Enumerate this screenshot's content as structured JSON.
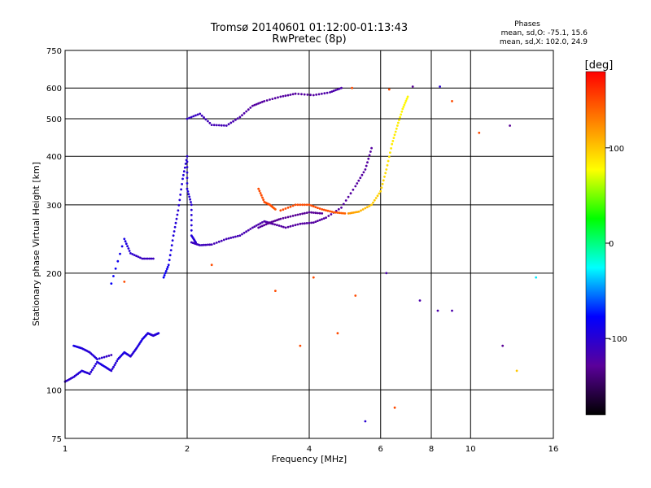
{
  "chart_data": {
    "type": "scatter",
    "title": "Tromsø 20140601 01:12:00-01:13:43",
    "subtitle": "RwPretec (8p)",
    "stats": {
      "heading": "Phases",
      "line1": "mean, sd,O: -75.1, 15.6",
      "line2": "mean, sd,X: 102.0, 24.9"
    },
    "xlabel": "Frequency [MHz]",
    "ylabel": "Stationary phase Virtual Height [km]",
    "xscale": "log",
    "yscale": "log",
    "xlim": [
      1,
      16
    ],
    "ylim": [
      75,
      750
    ],
    "xticks": [
      1,
      2,
      4,
      6,
      8,
      10,
      16
    ],
    "xtick_labels": [
      "1",
      "2",
      "4",
      "6",
      "8",
      "10",
      "16"
    ],
    "yticks": [
      75,
      100,
      200,
      300,
      400,
      500,
      600,
      750
    ],
    "ytick_labels": [
      "75",
      "100",
      "200",
      "300",
      "400",
      "500",
      "600",
      "750"
    ],
    "grid": true,
    "colorbar": {
      "label": "[deg]",
      "range": [
        -180,
        180
      ],
      "ticks": [
        100,
        0,
        -100
      ],
      "tick_labels": [
        "100",
        "0",
        "-100"
      ],
      "colors": [
        "#000000",
        "#5a009a",
        "#0000ff",
        "#00ffff",
        "#00ff00",
        "#ffff00",
        "#ff8000",
        "#ff0000"
      ]
    },
    "series": [
      {
        "values": [
          [
            1.0,
            105,
            -105
          ],
          [
            1.05,
            108,
            -100
          ],
          [
            1.1,
            112,
            -95
          ],
          [
            1.15,
            110,
            -100
          ],
          [
            1.2,
            118,
            -95
          ],
          [
            1.25,
            115,
            -90
          ],
          [
            1.3,
            112,
            -100
          ],
          [
            1.35,
            120,
            -95
          ],
          [
            1.4,
            125,
            -90
          ],
          [
            1.45,
            122,
            -100
          ],
          [
            1.5,
            128,
            -95
          ],
          [
            1.55,
            135,
            -90
          ],
          [
            1.6,
            140,
            -95
          ],
          [
            1.65,
            138,
            -100
          ],
          [
            1.7,
            140,
            -95
          ]
        ]
      },
      {
        "values": [
          [
            1.05,
            130,
            -90
          ],
          [
            1.1,
            128,
            -95
          ],
          [
            1.15,
            125,
            -100
          ],
          [
            1.2,
            120,
            -95
          ],
          [
            1.3,
            123,
            -110
          ]
        ]
      },
      {
        "values": [
          [
            1.3,
            188,
            -80
          ],
          [
            1.4,
            245,
            -90
          ],
          [
            1.45,
            225,
            -100
          ],
          [
            1.55,
            218,
            -110
          ],
          [
            1.65,
            218,
            -110
          ]
        ]
      },
      {
        "values": [
          [
            1.75,
            195,
            -80
          ],
          [
            1.8,
            210,
            -90
          ],
          [
            1.85,
            250,
            -95
          ],
          [
            1.9,
            290,
            -100
          ],
          [
            1.95,
            350,
            -95
          ],
          [
            2.0,
            400,
            -100
          ],
          [
            2.0,
            330,
            -95
          ],
          [
            2.05,
            300,
            -100
          ],
          [
            2.05,
            250,
            -95
          ],
          [
            2.1,
            240,
            -100
          ]
        ]
      },
      {
        "values": [
          [
            2.05,
            240,
            -110
          ],
          [
            2.15,
            236,
            -110
          ],
          [
            2.3,
            237,
            -115
          ],
          [
            2.5,
            245,
            -115
          ],
          [
            2.7,
            250,
            -115
          ],
          [
            2.9,
            262,
            -120
          ],
          [
            3.1,
            272,
            -120
          ],
          [
            3.25,
            268,
            -125
          ],
          [
            3.5,
            262,
            -125
          ],
          [
            3.8,
            268,
            -125
          ],
          [
            4.1,
            270,
            -125
          ],
          [
            4.4,
            278,
            -125
          ],
          [
            4.8,
            295,
            -125
          ],
          [
            5.2,
            335,
            -125
          ],
          [
            5.5,
            370,
            -125
          ],
          [
            5.7,
            420,
            -125
          ]
        ]
      },
      {
        "values": [
          [
            3.0,
            262,
            -125
          ],
          [
            3.2,
            270,
            -130
          ],
          [
            3.4,
            276,
            -130
          ],
          [
            3.7,
            282,
            -130
          ],
          [
            4.0,
            287,
            -130
          ],
          [
            4.3,
            285,
            -130
          ]
        ]
      },
      {
        "values": [
          [
            2.0,
            500,
            -105
          ],
          [
            2.15,
            515,
            -110
          ],
          [
            2.3,
            482,
            -115
          ],
          [
            2.5,
            480,
            -115
          ],
          [
            2.7,
            505,
            -120
          ],
          [
            2.9,
            540,
            -125
          ],
          [
            3.1,
            555,
            -125
          ],
          [
            3.4,
            570,
            -125
          ],
          [
            3.7,
            580,
            -125
          ],
          [
            4.1,
            575,
            -125
          ],
          [
            4.5,
            585,
            -120
          ],
          [
            4.8,
            600,
            -120
          ]
        ]
      },
      {
        "values": [
          [
            3.4,
            290,
            150
          ],
          [
            3.7,
            300,
            150
          ],
          [
            4.0,
            300,
            150
          ],
          [
            4.3,
            292,
            150
          ],
          [
            4.6,
            287,
            145
          ],
          [
            4.9,
            285,
            140
          ]
        ]
      },
      {
        "values": [
          [
            3.0,
            330,
            150
          ],
          [
            3.1,
            305,
            150
          ],
          [
            3.2,
            300,
            150
          ],
          [
            3.3,
            292,
            145
          ]
        ]
      },
      {
        "values": [
          [
            5.0,
            285,
            120
          ],
          [
            5.3,
            288,
            110
          ],
          [
            5.7,
            300,
            100
          ],
          [
            6.0,
            325,
            95
          ],
          [
            6.2,
            370,
            90
          ],
          [
            6.4,
            430,
            85
          ],
          [
            6.6,
            480,
            85
          ],
          [
            6.8,
            530,
            80
          ],
          [
            7.0,
            570,
            80
          ]
        ]
      }
    ],
    "scattered_points": [
      [
        1.4,
        190,
        150
      ],
      [
        2.3,
        210,
        150
      ],
      [
        3.3,
        180,
        150
      ],
      [
        4.1,
        195,
        150
      ],
      [
        5.2,
        175,
        150
      ],
      [
        6.2,
        200,
        -120
      ],
      [
        7.5,
        170,
        -120
      ],
      [
        9.0,
        160,
        -120
      ],
      [
        12.0,
        130,
        -130
      ],
      [
        13.0,
        112,
        100
      ],
      [
        6.5,
        90,
        150
      ],
      [
        5.5,
        83,
        -100
      ],
      [
        3.8,
        130,
        150
      ],
      [
        4.7,
        140,
        150
      ],
      [
        8.3,
        160,
        -120
      ],
      [
        14.5,
        195,
        -30
      ],
      [
        10.5,
        460,
        150
      ],
      [
        12.5,
        480,
        -130
      ],
      [
        5.1,
        600,
        150
      ],
      [
        6.3,
        595,
        150
      ],
      [
        7.2,
        605,
        -130
      ],
      [
        8.4,
        605,
        -100
      ],
      [
        9.0,
        555,
        150
      ]
    ]
  }
}
